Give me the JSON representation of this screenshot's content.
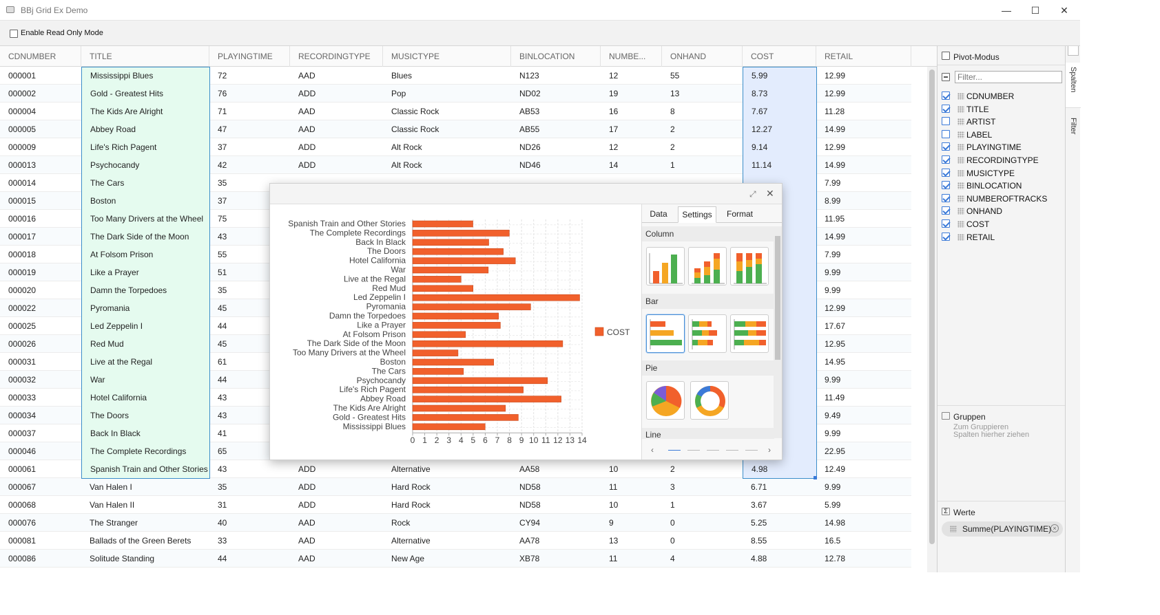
{
  "window": {
    "title": "BBj Grid Ex Demo",
    "minimize": "—",
    "maximize": "☐",
    "close": "✕"
  },
  "toolbar": {
    "read_only_label": "Enable Read Only Mode"
  },
  "grid": {
    "columns": [
      "CDNUMBER",
      "TITLE",
      "PLAYINGTIME",
      "RECORDINGTYPE",
      "MUSICTYPE",
      "BINLOCATION",
      "NUMBE...",
      "ONHAND",
      "COST",
      "RETAIL"
    ],
    "rows": [
      [
        "000001",
        "Mississippi Blues",
        "72",
        "AAD",
        "Blues",
        "N123",
        "12",
        "55",
        "5.99",
        "12.99"
      ],
      [
        "000002",
        "Gold - Greatest Hits",
        "76",
        "ADD",
        "Pop",
        "ND02",
        "19",
        "13",
        "8.73",
        "12.99"
      ],
      [
        "000004",
        "The Kids Are Alright",
        "71",
        "AAD",
        "Classic Rock",
        "AB53",
        "16",
        "8",
        "7.67",
        "11.28"
      ],
      [
        "000005",
        "Abbey Road",
        "47",
        "AAD",
        "Classic Rock",
        "AB55",
        "17",
        "2",
        "12.27",
        "14.99"
      ],
      [
        "000009",
        "Life's Rich Pagent",
        "37",
        "ADD",
        "Alt Rock",
        "ND26",
        "12",
        "2",
        "9.14",
        "12.99"
      ],
      [
        "000013",
        "Psychocandy",
        "42",
        "ADD",
        "Alt Rock",
        "ND46",
        "14",
        "1",
        "11.14",
        "14.99"
      ],
      [
        "000014",
        "The Cars",
        "35",
        "",
        "",
        "",
        "",
        "",
        "",
        "7.99"
      ],
      [
        "000015",
        "Boston",
        "37",
        "",
        "",
        "",
        "",
        "",
        "",
        "8.99"
      ],
      [
        "000016",
        "Too Many Drivers at the Wheel",
        "75",
        "",
        "",
        "",
        "",
        "",
        "",
        "11.95"
      ],
      [
        "000017",
        "The Dark Side of the Moon",
        "43",
        "",
        "",
        "",
        "",
        "",
        "",
        "14.99"
      ],
      [
        "000018",
        "At Folsom Prison",
        "55",
        "",
        "",
        "",
        "",
        "",
        "",
        "7.99"
      ],
      [
        "000019",
        "Like a Prayer",
        "51",
        "",
        "",
        "",
        "",
        "",
        "",
        "9.99"
      ],
      [
        "000020",
        "Damn the Torpedoes",
        "35",
        "",
        "",
        "",
        "",
        "",
        "",
        "9.99"
      ],
      [
        "000022",
        "Pyromania",
        "45",
        "",
        "",
        "",
        "",
        "",
        "",
        "12.99"
      ],
      [
        "000025",
        "Led Zeppelin I",
        "44",
        "",
        "",
        "",
        "",
        "",
        "",
        "17.67"
      ],
      [
        "000026",
        "Red Mud",
        "45",
        "",
        "",
        "",
        "",
        "",
        "",
        "12.95"
      ],
      [
        "000031",
        "Live at the Regal",
        "61",
        "",
        "",
        "",
        "",
        "",
        "",
        "14.95"
      ],
      [
        "000032",
        "War",
        "44",
        "",
        "",
        "",
        "",
        "",
        "",
        "9.99"
      ],
      [
        "000033",
        "Hotel California",
        "43",
        "",
        "",
        "",
        "",
        "",
        "",
        "11.49"
      ],
      [
        "000034",
        "The Doors",
        "43",
        "",
        "",
        "",
        "",
        "",
        "",
        "9.49"
      ],
      [
        "000037",
        "Back In Black",
        "41",
        "",
        "",
        "",
        "",
        "",
        "",
        "9.99"
      ],
      [
        "000046",
        "The Complete Recordings",
        "65",
        "",
        "",
        "",
        "",
        "",
        "",
        "22.95"
      ],
      [
        "000061",
        "Spanish Train and Other Stories",
        "43",
        "ADD",
        "Alternative",
        "AA58",
        "10",
        "2",
        "4.98",
        "12.49"
      ],
      [
        "000067",
        "Van Halen I",
        "35",
        "ADD",
        "Hard Rock",
        "ND58",
        "11",
        "3",
        "6.71",
        "9.99"
      ],
      [
        "000068",
        "Van Halen II",
        "31",
        "ADD",
        "Hard Rock",
        "ND58",
        "10",
        "1",
        "3.67",
        "5.99"
      ],
      [
        "000076",
        "The Stranger",
        "40",
        "AAD",
        "Rock",
        "CY94",
        "9",
        "0",
        "5.25",
        "14.98"
      ],
      [
        "000081",
        "Ballads of the Green Berets",
        "33",
        "AAD",
        "Alternative",
        "AA78",
        "13",
        "0",
        "8.55",
        "16.5"
      ],
      [
        "000086",
        "Solitude Standing",
        "44",
        "AAD",
        "New Age",
        "XB78",
        "11",
        "4",
        "4.88",
        "12.78"
      ]
    ]
  },
  "sidebar": {
    "pivot_label": "Pivot-Modus",
    "filter_placeholder": "Filter...",
    "columns": [
      {
        "name": "CDNUMBER",
        "checked": true
      },
      {
        "name": "TITLE",
        "checked": true
      },
      {
        "name": "ARTIST",
        "checked": false
      },
      {
        "name": "LABEL",
        "checked": false
      },
      {
        "name": "PLAYINGTIME",
        "checked": true
      },
      {
        "name": "RECORDINGTYPE",
        "checked": true
      },
      {
        "name": "MUSICTYPE",
        "checked": true
      },
      {
        "name": "BINLOCATION",
        "checked": true
      },
      {
        "name": "NUMBEROFTRACKS",
        "checked": true
      },
      {
        "name": "ONHAND",
        "checked": true
      },
      {
        "name": "COST",
        "checked": true
      },
      {
        "name": "RETAIL",
        "checked": true
      }
    ],
    "groups_title": "Gruppen",
    "groups_hint": "Zum Gruppieren Spalten hierher ziehen",
    "values_title": "Werte",
    "values_chip": "Summe(PLAYINGTIME)",
    "tab_columns": "Spalten",
    "tab_filter": "Filter"
  },
  "chart_panel": {
    "tabs": [
      "Data",
      "Settings",
      "Format"
    ],
    "active_tab": "Settings",
    "sections": [
      "Column",
      "Bar",
      "Pie",
      "Line"
    ],
    "colors": {
      "bar": "#f1602c",
      "green": "#4caf50",
      "orange": "#f5a623",
      "red": "#f1602c"
    }
  },
  "chart_data": {
    "type": "bar",
    "orientation": "horizontal",
    "categories": [
      "Spanish Train and Other Stories",
      "The Complete Recordings",
      "Back In Black",
      "The Doors",
      "Hotel California",
      "War",
      "Live at the Regal",
      "Red Mud",
      "Led Zeppelin I",
      "Pyromania",
      "Damn the Torpedoes",
      "Like a Prayer",
      "At Folsom Prison",
      "The Dark Side of the Moon",
      "Too Many Drivers at the Wheel",
      "Boston",
      "The Cars",
      "Psychocandy",
      "Life's Rich Pagent",
      "Abbey Road",
      "The Kids Are Alright",
      "Gold - Greatest Hits",
      "Mississippi Blues"
    ],
    "series": [
      {
        "name": "COST",
        "values": [
          4.98,
          7.99,
          6.29,
          7.49,
          8.49,
          6.25,
          4.0,
          4.99,
          13.8,
          9.75,
          7.1,
          7.25,
          4.37,
          12.4,
          3.75,
          6.7,
          4.2,
          11.14,
          9.14,
          12.27,
          7.67,
          8.73,
          5.99
        ]
      }
    ],
    "xticks": [
      "0",
      "1",
      "2",
      "3",
      "4",
      "5",
      "6",
      "7",
      "8",
      "9",
      "10",
      "11",
      "12",
      "13",
      "14"
    ],
    "xlim": [
      0,
      14
    ],
    "grid": true,
    "legend": "right"
  }
}
